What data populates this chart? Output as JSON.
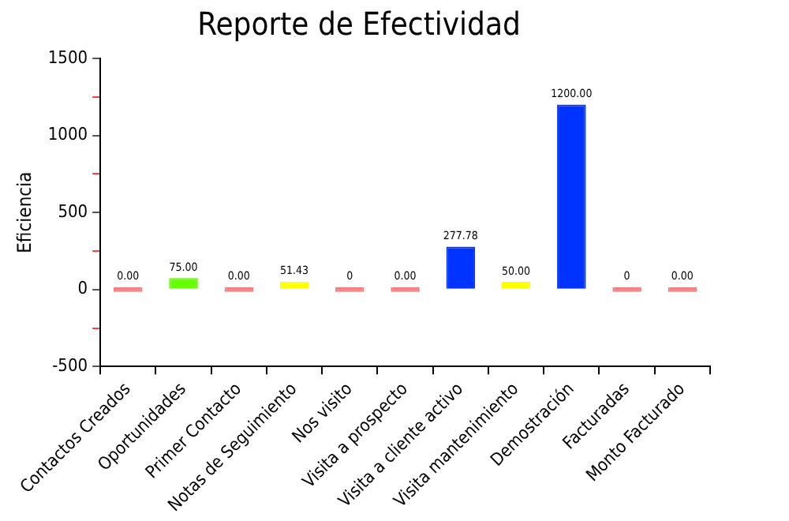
{
  "chart_data": {
    "type": "bar",
    "title": "Reporte de Efectividad",
    "ylabel": "Eficiencia",
    "categories": [
      "Contactos Creados",
      "Oportunidades",
      "Primer Contacto",
      "Notas de Seguimiento",
      "Nos visito",
      "Visita a prospecto",
      "Visita a cliente activo",
      "Visita mantenimiento",
      "Demostración",
      "Facturadas",
      "Monto Facturado"
    ],
    "values": [
      0,
      75,
      0,
      51.43,
      0,
      0,
      277.78,
      50,
      1200,
      0,
      0
    ],
    "colors": [
      "#f08080",
      "#66ff00",
      "#f08080",
      "#ffff00",
      "#f08080",
      "#f08080",
      "#0033ff",
      "#ffff00",
      "#0033ff",
      "#f08080",
      "#f08080"
    ],
    "value_labels": [
      "0.00",
      "75.00",
      "0.00",
      "51.43",
      "0",
      "0.00",
      "277.78",
      "50.00",
      "1200.00",
      "0",
      "0.00"
    ],
    "ylim": [
      -500,
      1500
    ],
    "yticks": [
      -500,
      {
        "value": -250,
        "label": null
      },
      0,
      {
        "value": 250,
        "label": null
      },
      500,
      {
        "value": 750,
        "label": null
      },
      1000,
      {
        "value": 1250,
        "label": null
      },
      1500
    ],
    "grid": false,
    "legend": false
  }
}
